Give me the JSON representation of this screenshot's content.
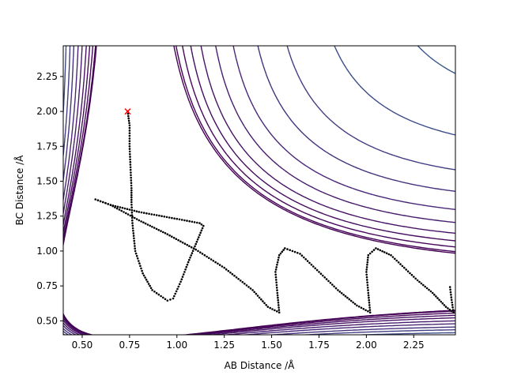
{
  "chart_data": {
    "type": "contour",
    "xlabel": "AB Distance /Å",
    "ylabel": "BC Distance /Å",
    "xlim": [
      0.4,
      2.47
    ],
    "ylim": [
      0.4,
      2.47
    ],
    "xticks": [
      "0.50",
      "0.75",
      "1.00",
      "1.25",
      "1.50",
      "1.75",
      "2.00",
      "2.25"
    ],
    "yticks": [
      "0.50",
      "0.75",
      "1.00",
      "1.25",
      "1.50",
      "1.75",
      "2.00",
      "2.25"
    ],
    "colormap": "viridis",
    "surface": {
      "kind": "LEPS potential energy surface (contour lines)",
      "min_distance": 0.74,
      "levels": [
        -4.4,
        -4.35,
        -4.2,
        -4.0,
        -3.75,
        -3.4,
        -3.0,
        -2.5,
        -2.0,
        -1.4,
        -0.8,
        -0.1,
        0.6,
        1.4,
        2.3,
        3.3,
        4.4,
        5.7,
        7.1,
        8.7
      ]
    },
    "start_marker": {
      "x": 0.74,
      "y": 2.0,
      "symbol": "x",
      "color": "#ff0000"
    },
    "trajectory": {
      "color": "#000000",
      "points": [
        [
          0.74,
          2.0
        ],
        [
          0.75,
          1.9
        ],
        [
          0.75,
          1.75
        ],
        [
          0.755,
          1.6
        ],
        [
          0.76,
          1.45
        ],
        [
          0.76,
          1.35
        ],
        [
          0.765,
          1.2
        ],
        [
          0.78,
          1.0
        ],
        [
          0.82,
          0.84
        ],
        [
          0.87,
          0.72
        ],
        [
          0.95,
          0.645
        ],
        [
          0.98,
          0.66
        ],
        [
          1.02,
          0.78
        ],
        [
          1.06,
          0.92
        ],
        [
          1.1,
          1.05
        ],
        [
          1.14,
          1.18
        ],
        [
          1.12,
          1.2
        ],
        [
          1.0,
          1.23
        ],
        [
          0.8,
          1.28
        ],
        [
          0.65,
          1.33
        ],
        [
          0.57,
          1.37
        ],
        [
          0.65,
          1.33
        ],
        [
          0.8,
          1.22
        ],
        [
          0.95,
          1.12
        ],
        [
          1.1,
          1.01
        ],
        [
          1.25,
          0.88
        ],
        [
          1.4,
          0.72
        ],
        [
          1.48,
          0.6
        ],
        [
          1.54,
          0.56
        ],
        [
          1.53,
          0.7
        ],
        [
          1.52,
          0.85
        ],
        [
          1.54,
          0.97
        ],
        [
          1.57,
          1.02
        ],
        [
          1.65,
          0.98
        ],
        [
          1.75,
          0.85
        ],
        [
          1.85,
          0.72
        ],
        [
          1.95,
          0.61
        ],
        [
          2.02,
          0.56
        ],
        [
          2.01,
          0.7
        ],
        [
          2.0,
          0.85
        ],
        [
          2.01,
          0.97
        ],
        [
          2.05,
          1.02
        ],
        [
          2.13,
          0.97
        ],
        [
          2.2,
          0.88
        ],
        [
          2.27,
          0.79
        ],
        [
          2.35,
          0.7
        ],
        [
          2.42,
          0.6
        ],
        [
          2.46,
          0.56
        ],
        [
          2.45,
          0.65
        ],
        [
          2.44,
          0.76
        ]
      ]
    }
  }
}
